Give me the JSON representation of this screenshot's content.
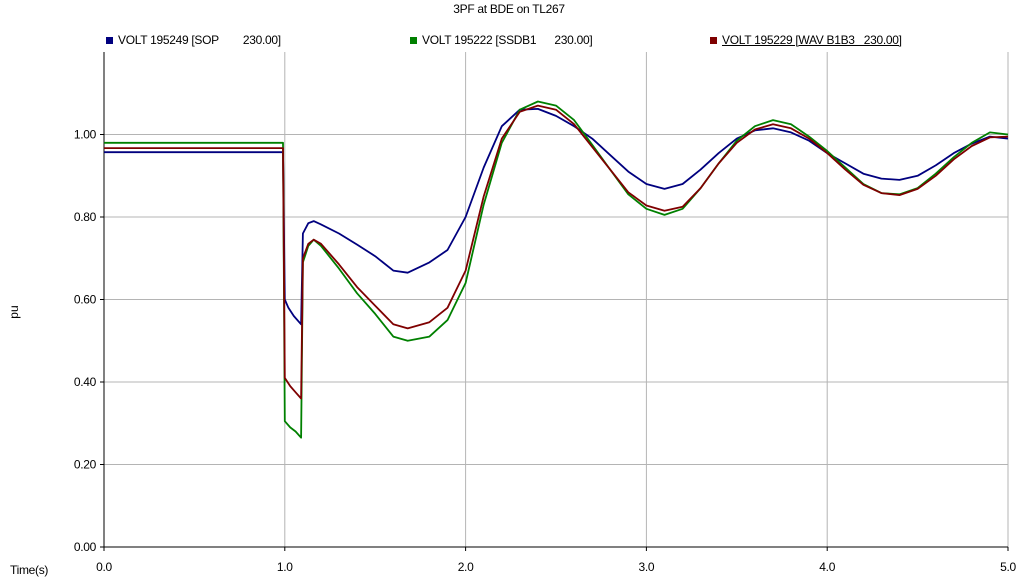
{
  "chart_data": {
    "type": "line",
    "title": "3PF at BDE on TL267",
    "xlabel": "Time(s)",
    "ylabel": "pu",
    "xlim": [
      0.0,
      5.0
    ],
    "ylim": [
      0.0,
      1.2
    ],
    "x_ticks": [
      "0.0",
      "1.0",
      "2.0",
      "3.0",
      "4.0",
      "5.0"
    ],
    "y_ticks": [
      "0.00",
      "0.20",
      "0.40",
      "0.60",
      "0.80",
      "1.00"
    ],
    "grid": true,
    "legend_position": "top",
    "series": [
      {
        "name": "VOLT 195249 [SOP        230.00]",
        "color": "#00007f",
        "points": [
          [
            0.0,
            0.957
          ],
          [
            0.99,
            0.957
          ],
          [
            1.0,
            0.6
          ],
          [
            1.02,
            0.58
          ],
          [
            1.05,
            0.56
          ],
          [
            1.09,
            0.54
          ],
          [
            1.1,
            0.76
          ],
          [
            1.13,
            0.785
          ],
          [
            1.16,
            0.79
          ],
          [
            1.2,
            0.782
          ],
          [
            1.3,
            0.76
          ],
          [
            1.4,
            0.733
          ],
          [
            1.5,
            0.705
          ],
          [
            1.6,
            0.67
          ],
          [
            1.68,
            0.665
          ],
          [
            1.8,
            0.69
          ],
          [
            1.9,
            0.72
          ],
          [
            2.0,
            0.8
          ],
          [
            2.1,
            0.92
          ],
          [
            2.2,
            1.02
          ],
          [
            2.3,
            1.06
          ],
          [
            2.4,
            1.062
          ],
          [
            2.5,
            1.045
          ],
          [
            2.6,
            1.02
          ],
          [
            2.7,
            0.99
          ],
          [
            2.8,
            0.95
          ],
          [
            2.9,
            0.91
          ],
          [
            3.0,
            0.88
          ],
          [
            3.1,
            0.868
          ],
          [
            3.2,
            0.88
          ],
          [
            3.3,
            0.915
          ],
          [
            3.4,
            0.955
          ],
          [
            3.5,
            0.99
          ],
          [
            3.6,
            1.01
          ],
          [
            3.7,
            1.015
          ],
          [
            3.8,
            1.005
          ],
          [
            3.9,
            0.985
          ],
          [
            4.0,
            0.955
          ],
          [
            4.1,
            0.93
          ],
          [
            4.2,
            0.905
          ],
          [
            4.3,
            0.893
          ],
          [
            4.4,
            0.89
          ],
          [
            4.5,
            0.9
          ],
          [
            4.6,
            0.925
          ],
          [
            4.7,
            0.955
          ],
          [
            4.8,
            0.978
          ],
          [
            4.9,
            0.995
          ],
          [
            5.0,
            0.99
          ]
        ]
      },
      {
        "name": "VOLT 195222 [SSDB1      230.00]",
        "color": "#008000",
        "points": [
          [
            0.0,
            0.98
          ],
          [
            0.99,
            0.98
          ],
          [
            1.0,
            0.305
          ],
          [
            1.03,
            0.29
          ],
          [
            1.06,
            0.28
          ],
          [
            1.09,
            0.265
          ],
          [
            1.1,
            0.69
          ],
          [
            1.13,
            0.73
          ],
          [
            1.16,
            0.745
          ],
          [
            1.2,
            0.73
          ],
          [
            1.3,
            0.675
          ],
          [
            1.4,
            0.615
          ],
          [
            1.5,
            0.565
          ],
          [
            1.6,
            0.51
          ],
          [
            1.68,
            0.5
          ],
          [
            1.8,
            0.51
          ],
          [
            1.9,
            0.55
          ],
          [
            2.0,
            0.64
          ],
          [
            2.1,
            0.83
          ],
          [
            2.2,
            0.98
          ],
          [
            2.3,
            1.06
          ],
          [
            2.4,
            1.08
          ],
          [
            2.5,
            1.07
          ],
          [
            2.6,
            1.035
          ],
          [
            2.7,
            0.975
          ],
          [
            2.8,
            0.915
          ],
          [
            2.9,
            0.855
          ],
          [
            3.0,
            0.82
          ],
          [
            3.1,
            0.805
          ],
          [
            3.2,
            0.82
          ],
          [
            3.3,
            0.87
          ],
          [
            3.4,
            0.93
          ],
          [
            3.5,
            0.985
          ],
          [
            3.6,
            1.02
          ],
          [
            3.7,
            1.035
          ],
          [
            3.8,
            1.025
          ],
          [
            3.9,
            0.995
          ],
          [
            4.0,
            0.96
          ],
          [
            4.1,
            0.92
          ],
          [
            4.2,
            0.88
          ],
          [
            4.3,
            0.858
          ],
          [
            4.4,
            0.855
          ],
          [
            4.5,
            0.87
          ],
          [
            4.6,
            0.905
          ],
          [
            4.7,
            0.945
          ],
          [
            4.8,
            0.98
          ],
          [
            4.9,
            1.005
          ],
          [
            5.0,
            1.0
          ]
        ]
      },
      {
        "name": "VOLT 195229 [WAV B1B3   230.00]",
        "color": "#7f0000",
        "points": [
          [
            0.0,
            0.967
          ],
          [
            0.99,
            0.967
          ],
          [
            1.0,
            0.41
          ],
          [
            1.03,
            0.39
          ],
          [
            1.06,
            0.375
          ],
          [
            1.09,
            0.36
          ],
          [
            1.1,
            0.7
          ],
          [
            1.13,
            0.735
          ],
          [
            1.16,
            0.745
          ],
          [
            1.2,
            0.735
          ],
          [
            1.3,
            0.685
          ],
          [
            1.4,
            0.63
          ],
          [
            1.5,
            0.585
          ],
          [
            1.6,
            0.54
          ],
          [
            1.68,
            0.53
          ],
          [
            1.8,
            0.545
          ],
          [
            1.9,
            0.58
          ],
          [
            2.0,
            0.67
          ],
          [
            2.1,
            0.85
          ],
          [
            2.2,
            0.99
          ],
          [
            2.3,
            1.055
          ],
          [
            2.4,
            1.07
          ],
          [
            2.5,
            1.06
          ],
          [
            2.6,
            1.025
          ],
          [
            2.7,
            0.97
          ],
          [
            2.8,
            0.915
          ],
          [
            2.9,
            0.86
          ],
          [
            3.0,
            0.828
          ],
          [
            3.1,
            0.815
          ],
          [
            3.2,
            0.825
          ],
          [
            3.3,
            0.87
          ],
          [
            3.4,
            0.93
          ],
          [
            3.5,
            0.98
          ],
          [
            3.6,
            1.012
          ],
          [
            3.7,
            1.025
          ],
          [
            3.8,
            1.015
          ],
          [
            3.9,
            0.99
          ],
          [
            4.0,
            0.955
          ],
          [
            4.1,
            0.915
          ],
          [
            4.2,
            0.878
          ],
          [
            4.3,
            0.858
          ],
          [
            4.4,
            0.853
          ],
          [
            4.5,
            0.868
          ],
          [
            4.6,
            0.9
          ],
          [
            4.7,
            0.94
          ],
          [
            4.8,
            0.972
          ],
          [
            4.9,
            0.993
          ],
          [
            5.0,
            0.995
          ]
        ]
      }
    ]
  }
}
